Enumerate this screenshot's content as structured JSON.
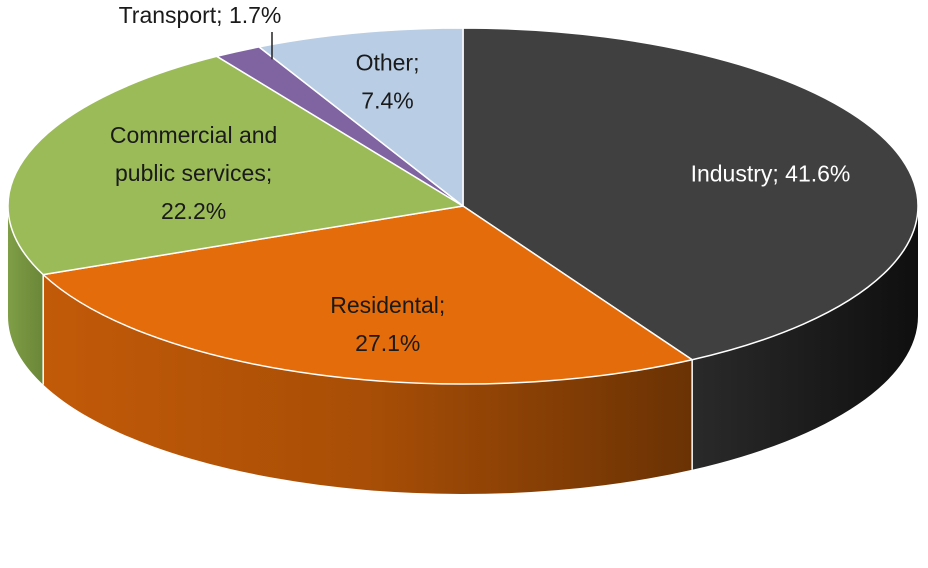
{
  "chart_data": {
    "type": "pie",
    "style": "3d-exploded-none",
    "categories": [
      "Industry",
      "Residental",
      "Commercial and public services",
      "Transport",
      "Other"
    ],
    "values": [
      41.6,
      27.1,
      22.2,
      1.7,
      7.4
    ],
    "data_labels": [
      {
        "line1": "Industry; 41.6%",
        "line2": "",
        "line3": ""
      },
      {
        "line1": "Residental;",
        "line2": "27.1%",
        "line3": ""
      },
      {
        "line1": "Commercial and",
        "line2": "public services;",
        "line3": "22.2%"
      },
      {
        "line1": "Transport; 1.7%",
        "line2": "",
        "line3": ""
      },
      {
        "line1": "Other;",
        "line2": "7.4%",
        "line3": ""
      }
    ],
    "colors": {
      "Industry": "#404040",
      "Residental": "#e46c0a",
      "Commercial and public services": "#9bbb59",
      "Transport": "#8064a2",
      "Other": "#b9cde5"
    },
    "side_colors": {
      "Industry": "#1f1f1f",
      "Residental": "#a84e06",
      "Commercial and public services": "#6f8a3c"
    },
    "label_colors": {
      "Industry": "#ffffff",
      "Residental": "#1a1a1a",
      "Commercial and public services": "#1a1a1a",
      "Transport": "#1a1a1a",
      "Other": "#1a1a1a"
    },
    "legend": "none",
    "start_angle": "12 o'clock, clockwise"
  }
}
